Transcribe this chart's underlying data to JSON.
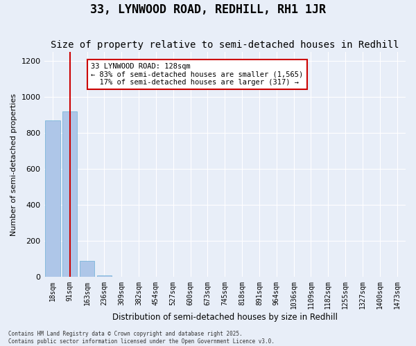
{
  "title": "33, LYNWOOD ROAD, REDHILL, RH1 1JR",
  "subtitle": "Size of property relative to semi-detached houses in Redhill",
  "xlabel": "Distribution of semi-detached houses by size in Redhill",
  "ylabel": "Number of semi-detached properties",
  "bin_labels": [
    "18sqm",
    "91sqm",
    "163sqm",
    "236sqm",
    "309sqm",
    "382sqm",
    "454sqm",
    "527sqm",
    "600sqm",
    "673sqm",
    "745sqm",
    "818sqm",
    "891sqm",
    "964sqm",
    "1036sqm",
    "1109sqm",
    "1182sqm",
    "1255sqm",
    "1327sqm",
    "1400sqm",
    "1473sqm"
  ],
  "bin_edges": [
    18,
    91,
    163,
    236,
    309,
    382,
    454,
    527,
    600,
    673,
    745,
    818,
    891,
    964,
    1036,
    1109,
    1182,
    1255,
    1327,
    1400,
    1473
  ],
  "bar_heights": [
    870,
    920,
    90,
    10,
    0,
    0,
    0,
    0,
    0,
    0,
    0,
    0,
    0,
    0,
    0,
    0,
    0,
    0,
    0,
    0,
    0
  ],
  "bar_color": "#aec6e8",
  "bar_edge_color": "#6baed6",
  "property_size": 128,
  "property_bin_index": 1,
  "vline_color": "#cc0000",
  "annotation_text": "33 LYNWOOD ROAD: 128sqm\n← 83% of semi-detached houses are smaller (1,565)\n  17% of semi-detached houses are larger (317) →",
  "annotation_box_color": "#cc0000",
  "ylim": [
    0,
    1250
  ],
  "yticks": [
    0,
    200,
    400,
    600,
    800,
    1000,
    1200
  ],
  "background_color": "#e8eef8",
  "footer_text": "Contains HM Land Registry data © Crown copyright and database right 2025.\nContains public sector information licensed under the Open Government Licence v3.0.",
  "title_fontsize": 12,
  "subtitle_fontsize": 10,
  "xlabel_fontsize": 8.5,
  "ylabel_fontsize": 8,
  "tick_fontsize": 7
}
